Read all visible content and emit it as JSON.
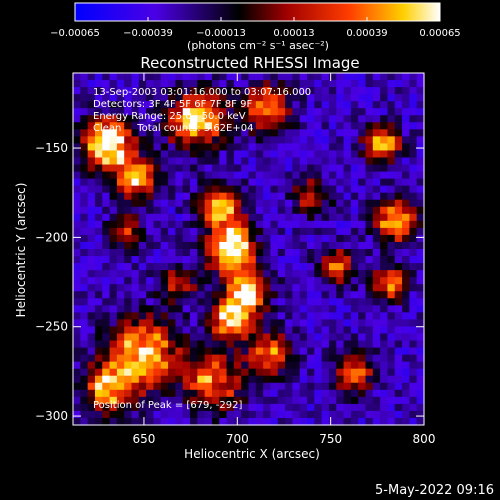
{
  "chart_data": {
    "type": "heatmap",
    "title": "Reconstructed RHESSI Image",
    "xlabel": "Heliocentric X (arcsec)",
    "ylabel": "Heliocentric Y (arcsec)",
    "x_range": [
      612,
      800
    ],
    "y_range": [
      -305,
      -108
    ],
    "x_ticks": [
      650,
      700,
      750,
      800
    ],
    "y_ticks": [
      -150,
      -200,
      -250,
      -300
    ],
    "x_tick_labels": [
      "650",
      "700",
      "750",
      "800"
    ],
    "y_tick_labels": [
      "−150",
      "−200",
      "−250",
      "−300"
    ],
    "grid": false,
    "colorbar": {
      "range": [
        -0.00065,
        0.00065
      ],
      "tick_labels": [
        "−0.00065",
        "−0.00039",
        "−0.00013",
        "0.00013",
        "0.00039",
        "0.00065"
      ],
      "tick_values": [
        -0.00065,
        -0.00039,
        -0.00013,
        0.00013,
        0.00039,
        0.00065
      ],
      "units": "(photons cm⁻² s⁻¹ asec⁻²)",
      "colormap": [
        "#0000ff",
        "#4b00e6",
        "#000000",
        "#a00000",
        "#ff3c00",
        "#ffd000",
        "#ffffff"
      ]
    },
    "annotations": [
      "13-Sep-2003 03:01:16.000 to 03:07:16.000",
      "Detectors: 3F 4F 5F 6F 7F 8F 9F",
      "Energy Range: 25.0 - 50.0 keV",
      "Clean     Total counts: 3.62E+04"
    ],
    "peak_label": "Position of Peak = [679, -292]",
    "peak_position": [
      679,
      -292
    ],
    "grid_size": [
      48,
      50
    ]
  },
  "footer": {
    "date": "5-May-2022 09:16"
  }
}
